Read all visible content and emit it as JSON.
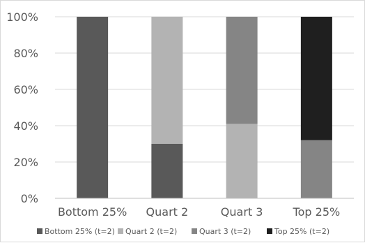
{
  "chart_data": {
    "type": "bar",
    "stacked": true,
    "percent": true,
    "categories": [
      "Bottom 25%",
      "Quart 2",
      "Quart 3",
      "Top 25%"
    ],
    "series": [
      {
        "name": "Bottom 25% (t=2)",
        "color": "#595959",
        "values": [
          100,
          30,
          0,
          0
        ]
      },
      {
        "name": "Quart 2 (t=2)",
        "color": "#b3b3b3",
        "values": [
          0,
          70,
          41,
          0
        ]
      },
      {
        "name": "Quart 3 (t=2)",
        "color": "#858585",
        "values": [
          0,
          0,
          59,
          32
        ]
      },
      {
        "name": "Top 25% (t=2)",
        "color": "#1f1f1f",
        "values": [
          0,
          0,
          0,
          68
        ]
      }
    ],
    "yticks": [
      "0%",
      "20%",
      "40%",
      "60%",
      "80%",
      "100%"
    ],
    "ylim": [
      0,
      100
    ],
    "grid": true,
    "legend_position": "bottom"
  }
}
